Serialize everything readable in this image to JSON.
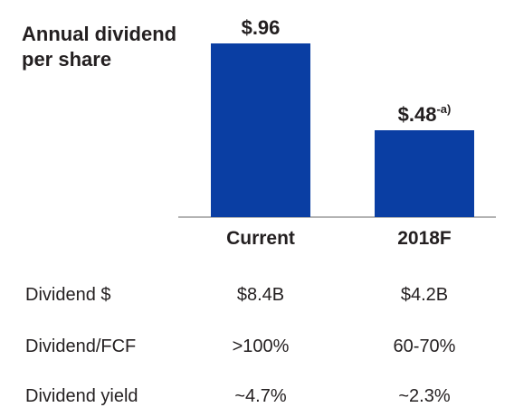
{
  "chart_data": {
    "type": "bar",
    "title_lines": [
      "Annual dividend",
      "per share"
    ],
    "categories": [
      "Current",
      "2018F"
    ],
    "values": [
      0.96,
      0.48
    ],
    "value_labels": [
      "$.96",
      "$.48"
    ],
    "value_label_superscripts": [
      "",
      "-a)"
    ],
    "ylim": [
      0,
      1.0
    ],
    "grid": false,
    "colors": {
      "bar": "#0a3ea3",
      "axis": "#9a9a9a",
      "text": "#231f20"
    }
  },
  "table": {
    "rows": [
      {
        "label": "Dividend $",
        "values": [
          "$8.4B",
          "$4.2B"
        ]
      },
      {
        "label": "Dividend/FCF",
        "values": [
          ">100%",
          "60-70%"
        ]
      },
      {
        "label": "Dividend yield",
        "values": [
          "~4.7%",
          "~2.3%"
        ]
      }
    ]
  }
}
